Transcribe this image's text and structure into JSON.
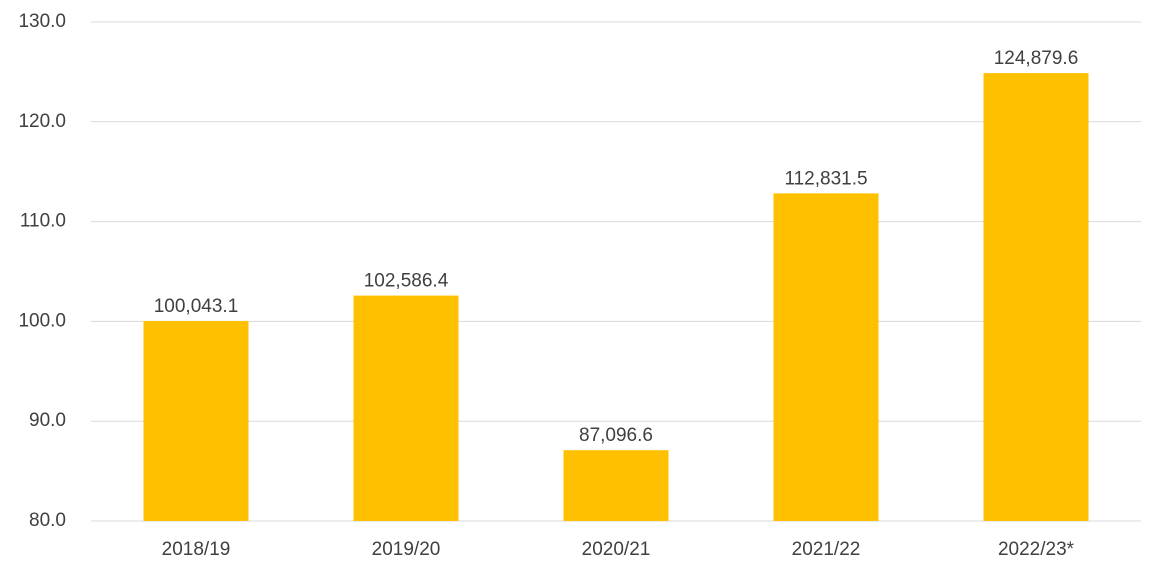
{
  "chart_data": {
    "type": "bar",
    "categories": [
      "2018/19",
      "2019/20",
      "2020/21",
      "2021/22",
      "2022/23*"
    ],
    "values": [
      100.0431,
      102.5864,
      87.0966,
      112.8315,
      124.8796
    ],
    "value_labels": [
      "100,043.1",
      "102,586.4",
      "87,096.6",
      "112,831.5",
      "124,879.6"
    ],
    "color": "#ffc000",
    "ylim": [
      80,
      130
    ],
    "yticks": [
      {
        "value": 80,
        "label": "80.0"
      },
      {
        "value": 90,
        "label": "90.0"
      },
      {
        "value": 100,
        "label": "100.0"
      },
      {
        "value": 110,
        "label": "110.0"
      },
      {
        "value": 120,
        "label": "120.0"
      },
      {
        "value": 130,
        "label": "130.0"
      }
    ],
    "grid": true
  }
}
